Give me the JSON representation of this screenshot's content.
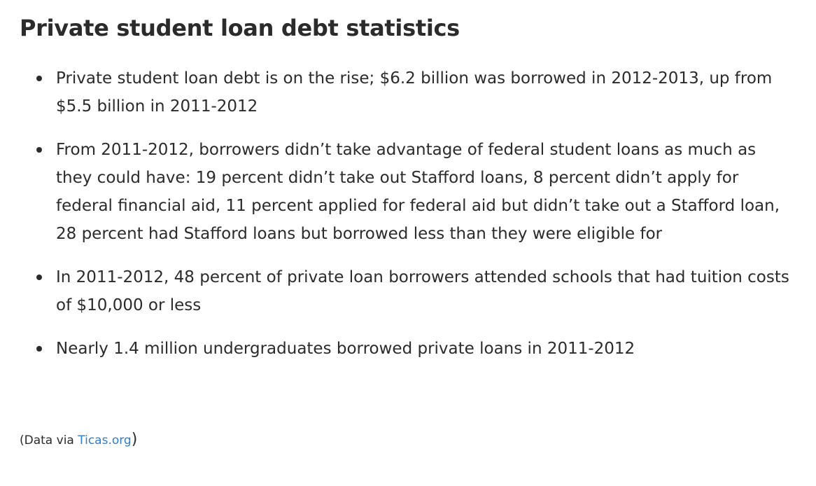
{
  "heading": "Private student loan debt statistics",
  "bullets": [
    "Private student loan debt is on the rise; $6.2 billion was borrowed in 2012-2013, up from $5.5 billion in 2011-2012",
    "From 2011-2012, borrowers didn’t take advantage of federal student loans as much as they could have: 19 percent didn’t take out Stafford loans, 8 percent didn’t apply for federal financial aid, 11 percent applied for federal aid but didn’t take out a Stafford loan, 28 percent had Stafford loans but borrowed less than they were eligible for",
    "In 2011-2012, 48 percent of private loan borrowers attended schools that had tuition costs of $10,000 or less",
    "Nearly 1.4 million undergraduates borrowed private loans in 2011-2012"
  ],
  "source": {
    "prefix": "(Data via ",
    "link_text": "Ticas.org",
    "suffix": ")"
  },
  "colors": {
    "text": "#2b2b2b",
    "link": "#2f7fc9"
  }
}
